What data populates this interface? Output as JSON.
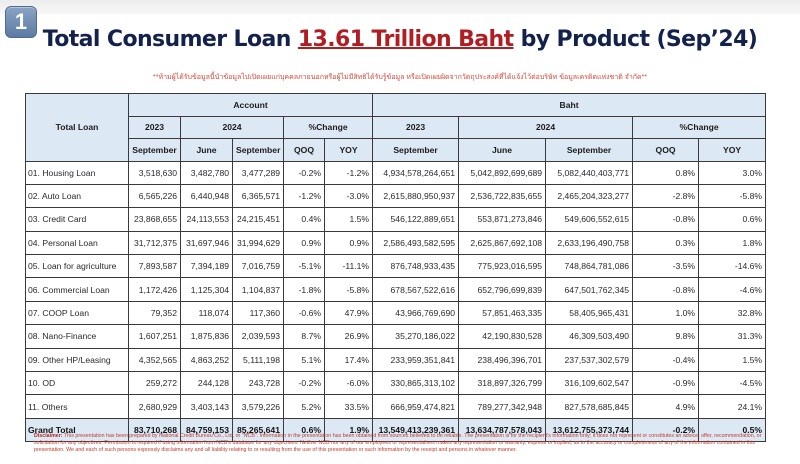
{
  "badge": "1",
  "title": {
    "prefix": "Total Consumer Loan ",
    "highlight": "13.61 Trillion Baht",
    "suffix": " by Product (Sep’24)"
  },
  "thai_note": "**ห้ามผู้ได้รับข้อมูลนี้นำข้อมูลไปเปิดเผยแก่บุคคลภายนอกหรือผู้ไม่มีสิทธิได้รับรู้ข้อมูล หรือเปิดเผยผิดจากวัตถุประสงค์ที่ได้แจ้งไว้ต่อบริษัท ข้อมูลเครดิตแห่งชาติ จำกัด**",
  "table": {
    "row_header": "Total Loan",
    "groups": [
      "Account",
      "Baht"
    ],
    "year_2023": "2023",
    "year_2024": "2024",
    "pct_change": "%Change",
    "col_sep23": "September",
    "col_jun24": "June",
    "col_sep24": "September",
    "col_qoq": "QOQ",
    "col_yoy": "YOY",
    "rows": [
      {
        "label": "01. Housing Loan",
        "acc": [
          "3,518,630",
          "3,482,780",
          "3,477,289",
          "-0.2%",
          "-1.2%"
        ],
        "baht": [
          "4,934,578,264,651",
          "5,042,892,699,689",
          "5,082,440,403,771",
          "0.8%",
          "3.0%"
        ]
      },
      {
        "label": "02. Auto Loan",
        "acc": [
          "6,565,226",
          "6,440,948",
          "6,365,571",
          "-1.2%",
          "-3.0%"
        ],
        "baht": [
          "2,615,880,950,937",
          "2,536,722,835,655",
          "2,465,204,323,277",
          "-2.8%",
          "-5.8%"
        ]
      },
      {
        "label": "03. Credit Card",
        "acc": [
          "23,868,655",
          "24,113,553",
          "24,215,451",
          "0.4%",
          "1.5%"
        ],
        "baht": [
          "546,122,889,651",
          "553,871,273,846",
          "549,606,552,615",
          "-0.8%",
          "0.6%"
        ]
      },
      {
        "label": "04. Personal Loan",
        "acc": [
          "31,712,375",
          "31,697,946",
          "31,994,629",
          "0.9%",
          "0.9%"
        ],
        "baht": [
          "2,586,493,582,595",
          "2,625,867,692,108",
          "2,633,196,490,758",
          "0.3%",
          "1.8%"
        ]
      },
      {
        "label": "05. Loan for agriculture",
        "acc": [
          "7,893,587",
          "7,394,189",
          "7,016,759",
          "-5.1%",
          "-11.1%"
        ],
        "baht": [
          "876,748,933,435",
          "775,923,016,595",
          "748,864,781,086",
          "-3.5%",
          "-14.6%"
        ]
      },
      {
        "label": "06. Commercial Loan",
        "acc": [
          "1,172,426",
          "1,125,304",
          "1,104,837",
          "-1.8%",
          "-5.8%"
        ],
        "baht": [
          "678,567,522,616",
          "652,796,699,839",
          "647,501,762,345",
          "-0.8%",
          "-4.6%"
        ]
      },
      {
        "label": "07. COOP Loan",
        "acc": [
          "79,352",
          "118,074",
          "117,360",
          "-0.6%",
          "47.9%"
        ],
        "baht": [
          "43,966,769,690",
          "57,851,463,335",
          "58,405,965,431",
          "1.0%",
          "32.8%"
        ]
      },
      {
        "label": "08. Nano-Finance",
        "acc": [
          "1,607,251",
          "1,875,836",
          "2,039,593",
          "8.7%",
          "26.9%"
        ],
        "baht": [
          "35,270,186,022",
          "42,190,830,528",
          "46,309,503,490",
          "9.8%",
          "31.3%"
        ]
      },
      {
        "label": "09. Other HP/Leasing",
        "acc": [
          "4,352,565",
          "4,863,252",
          "5,111,198",
          "5.1%",
          "17.4%"
        ],
        "baht": [
          "233,959,351,841",
          "238,496,396,701",
          "237,537,302,579",
          "-0.4%",
          "1.5%"
        ]
      },
      {
        "label": "10. OD",
        "acc": [
          "259,272",
          "244,128",
          "243,728",
          "-0.2%",
          "-6.0%"
        ],
        "baht": [
          "330,865,313,102",
          "318,897,326,799",
          "316,109,602,547",
          "-0.9%",
          "-4.5%"
        ]
      },
      {
        "label": "11. Others",
        "acc": [
          "2,680,929",
          "3,403,143",
          "3,579,226",
          "5.2%",
          "33.5%"
        ],
        "baht": [
          "666,959,474,821",
          "789,277,342,948",
          "827,578,685,845",
          "4.9%",
          "24.1%"
        ]
      }
    ],
    "total": {
      "label": "Grand Total",
      "acc": [
        "83,710,268",
        "84,759,153",
        "85,265,641",
        "0.6%",
        "1.9%"
      ],
      "baht": [
        "13,549,413,239,361",
        "13,634,787,578,043",
        "13,612,755,373,744",
        "-0.2%",
        "0.5%"
      ]
    }
  },
  "disclaimer": {
    "label": "Disclaimer:",
    "text": " This presentation has been prepared by National Credit Bureau Co., Ltd. or \"NCB\". Information in the presentation has been obtained from sources believed to be reliable. The presentation is for the recipient's information only; it does not represent or constitutes an advice, offer, recommendation, or solicitation for any objectives. Permission is required if using information from NCB's database for any objectives. Neither NCB nor any of our employees or representatives makes any representation or warranty, express or implied, as to the accuracy or completeness of any of the information contained in this presentation. We and each of such persons expressly disclaims any and all liability relating to or resulting from the use of this presentation or such information by the receipt and persons in whatever manner."
  },
  "colors": {
    "title": "#13224d",
    "highlight": "#b01e23",
    "header_fill": "#dce9f5",
    "disclaimer": "#c0392b"
  }
}
